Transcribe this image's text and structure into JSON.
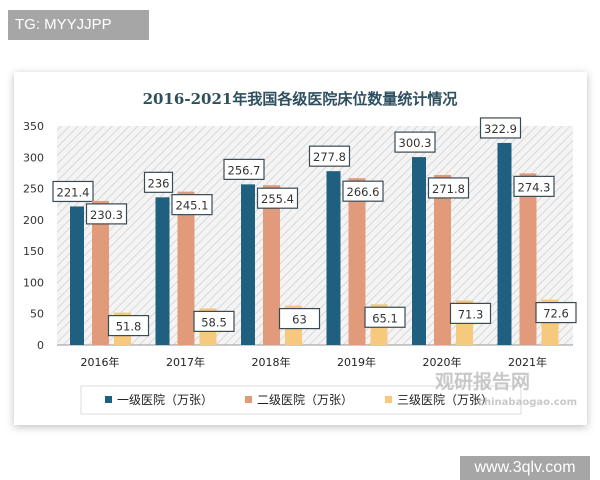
{
  "tag_label": "TG: MYYJJPP",
  "watermark": "www.3qlv.com",
  "logo_text": "观研报告网",
  "logo_url_text": "chinabaogao.com",
  "chart_data": {
    "type": "bar",
    "title": "2016-2021年我国各级医院床位数量统计情况",
    "categories": [
      "2016年",
      "2017年",
      "2018年",
      "2019年",
      "2020年",
      "2021年"
    ],
    "series": [
      {
        "name": "一级医院（万张）",
        "color": "#1f5f7f",
        "values": [
          221.4,
          236,
          256.7,
          277.8,
          300.3,
          322.9
        ]
      },
      {
        "name": "二级医院（万张）",
        "color": "#e29b7a",
        "values": [
          230.3,
          245.1,
          255.4,
          266.6,
          271.8,
          274.3
        ]
      },
      {
        "name": "三级医院（万张）",
        "color": "#f7c97f",
        "values": [
          51.8,
          58.5,
          63,
          65.1,
          71.3,
          72.6
        ]
      }
    ],
    "yticks": [
      "0",
      "50",
      "100",
      "150",
      "200",
      "250",
      "300",
      "350"
    ],
    "ylim": [
      0,
      350
    ],
    "legend": "bottom",
    "grid": false
  }
}
